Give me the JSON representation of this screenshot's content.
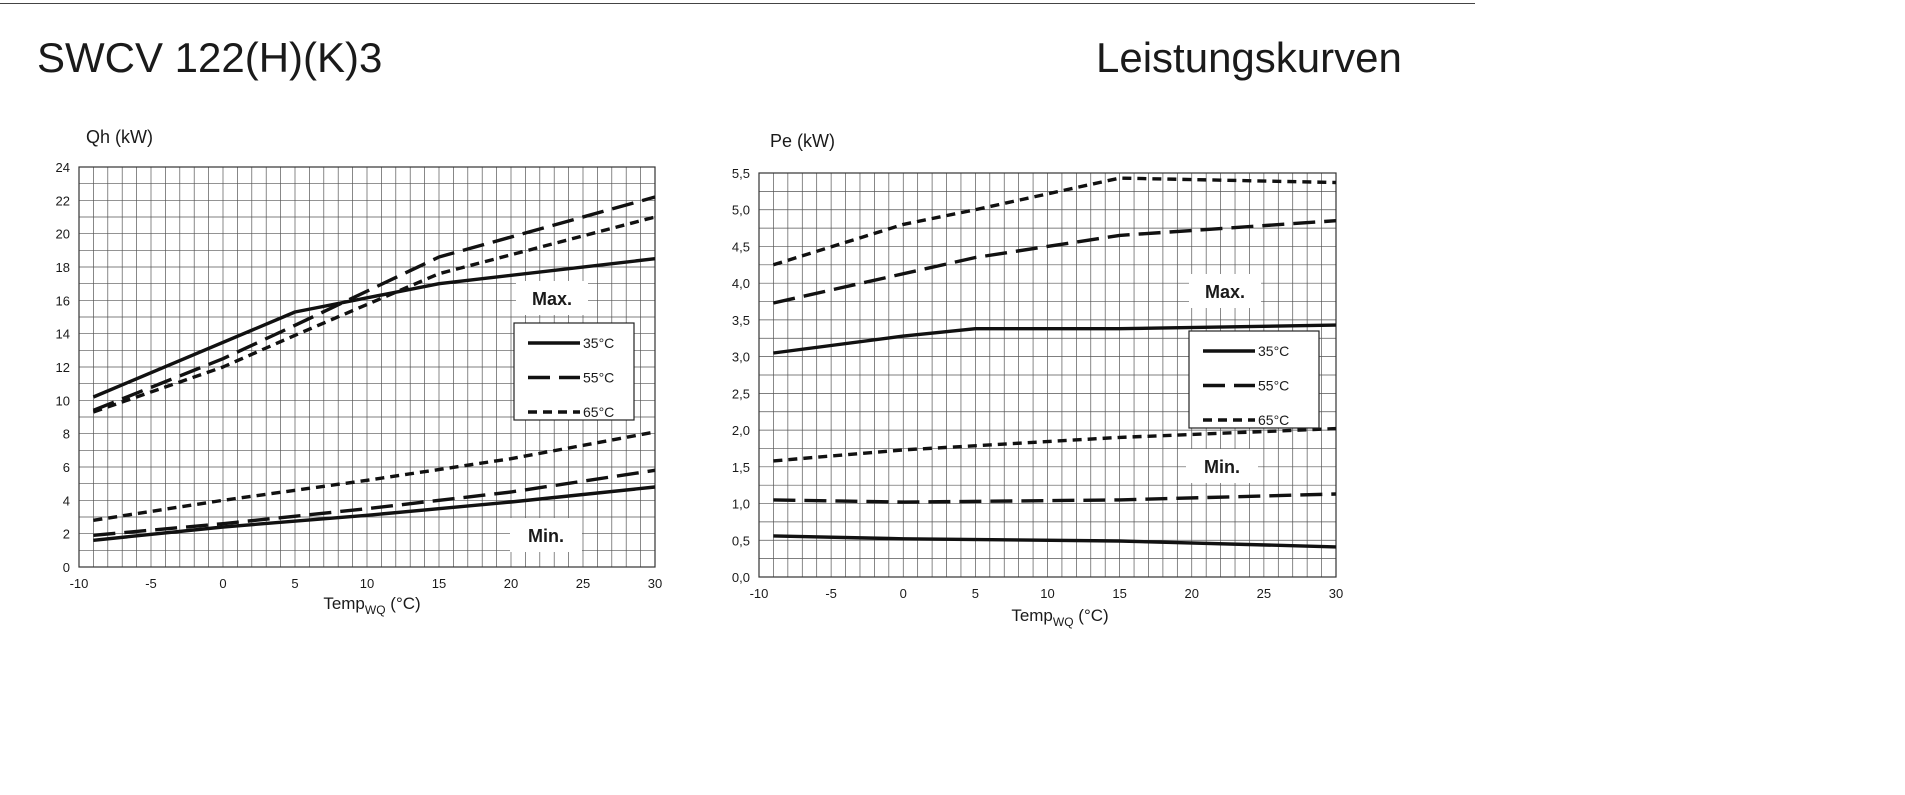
{
  "page": {
    "title": "SWCV 122(H)(K)3",
    "subtitle": "Leistungskurven"
  },
  "legend": {
    "items": [
      {
        "label": "35°C",
        "dash": "solid"
      },
      {
        "label": "55°C",
        "dash": "long-dash"
      },
      {
        "label": "65°C",
        "dash": "short-dash"
      }
    ]
  },
  "chart_data": [
    {
      "type": "line",
      "ylabel": "Qh (kW)",
      "xlabel_main": "Temp",
      "xlabel_sub": "WQ",
      "xlabel_unit": " (°C)",
      "xlim": [
        -10,
        30
      ],
      "ylim": [
        0,
        24
      ],
      "xticks": [
        -10,
        -5,
        0,
        5,
        10,
        15,
        20,
        25,
        30
      ],
      "xtick_labels": [
        "-10",
        "-5",
        "0",
        "5",
        "10",
        "15",
        "20",
        "25",
        "30"
      ],
      "yticks": [
        0,
        2,
        4,
        6,
        8,
        10,
        12,
        14,
        16,
        18,
        20,
        22,
        24
      ],
      "ytick_labels": [
        "0",
        "2",
        "4",
        "6",
        "8",
        "10",
        "12",
        "14",
        "16",
        "18",
        "20",
        "22",
        "24"
      ],
      "grid": true,
      "annotations": {
        "max": "Max.",
        "min": "Min."
      },
      "series": [
        {
          "label": "35°C",
          "group": "Max.",
          "dash": "solid",
          "x": [
            -9,
            5,
            15,
            30
          ],
          "y": [
            10.2,
            15.3,
            17.0,
            18.5
          ]
        },
        {
          "label": "55°C",
          "group": "Max.",
          "dash": "long-dash",
          "x": [
            -9,
            0,
            5,
            15,
            30
          ],
          "y": [
            9.4,
            12.5,
            14.5,
            18.6,
            22.2
          ]
        },
        {
          "label": "65°C",
          "group": "Max.",
          "dash": "short-dash",
          "x": [
            -9,
            0,
            5,
            15,
            30
          ],
          "y": [
            9.3,
            12.0,
            13.9,
            17.6,
            21.0
          ]
        },
        {
          "label": "35°C",
          "group": "Min.",
          "dash": "solid",
          "x": [
            -9,
            0,
            10,
            20,
            30
          ],
          "y": [
            1.6,
            2.4,
            3.1,
            3.9,
            4.8
          ]
        },
        {
          "label": "55°C",
          "group": "Min.",
          "dash": "long-dash",
          "x": [
            -9,
            0,
            10,
            20,
            30
          ],
          "y": [
            1.9,
            2.6,
            3.5,
            4.5,
            5.8
          ]
        },
        {
          "label": "65°C",
          "group": "Min.",
          "dash": "short-dash",
          "x": [
            -9,
            0,
            10,
            20,
            30
          ],
          "y": [
            2.8,
            4.0,
            5.2,
            6.5,
            8.1
          ]
        }
      ]
    },
    {
      "type": "line",
      "ylabel": "Pe (kW)",
      "xlabel_main": "Temp",
      "xlabel_sub": "WQ",
      "xlabel_unit": " (°C)",
      "xlim": [
        -10,
        30
      ],
      "ylim": [
        0,
        5.5
      ],
      "xticks": [
        -10,
        -5,
        0,
        5,
        10,
        15,
        20,
        25,
        30
      ],
      "xtick_labels": [
        "-10",
        "-5",
        "0",
        "5",
        "10",
        "15",
        "20",
        "25",
        "30"
      ],
      "yticks": [
        0,
        0.5,
        1.0,
        1.5,
        2.0,
        2.5,
        3.0,
        3.5,
        4.0,
        4.5,
        5.0,
        5.5
      ],
      "ytick_labels": [
        "0,0",
        "0,5",
        "1,0",
        "1,5",
        "2,0",
        "2,5",
        "3,0",
        "3,5",
        "4,0",
        "4,5",
        "5,0",
        "5,5"
      ],
      "grid": true,
      "annotations": {
        "max": "Max.",
        "min": "Min."
      },
      "series": [
        {
          "label": "35°C",
          "group": "Max.",
          "dash": "solid",
          "x": [
            -9,
            0,
            5,
            15,
            30
          ],
          "y": [
            3.05,
            3.28,
            3.38,
            3.38,
            3.43
          ]
        },
        {
          "label": "55°C",
          "group": "Max.",
          "dash": "long-dash",
          "x": [
            -9,
            5,
            15,
            30
          ],
          "y": [
            3.73,
            4.35,
            4.65,
            4.85
          ]
        },
        {
          "label": "65°C",
          "group": "Max.",
          "dash": "short-dash",
          "x": [
            -9,
            0,
            5,
            15,
            30
          ],
          "y": [
            4.25,
            4.8,
            5.0,
            5.43,
            5.37
          ]
        },
        {
          "label": "35°C",
          "group": "Min.",
          "dash": "solid",
          "x": [
            -9,
            0,
            15,
            30
          ],
          "y": [
            0.56,
            0.52,
            0.49,
            0.41
          ]
        },
        {
          "label": "55°C",
          "group": "Min.",
          "dash": "long-dash",
          "x": [
            -9,
            0,
            15,
            30
          ],
          "y": [
            1.05,
            1.02,
            1.05,
            1.13
          ]
        },
        {
          "label": "65°C",
          "group": "Min.",
          "dash": "short-dash",
          "x": [
            -9,
            0,
            15,
            30
          ],
          "y": [
            1.58,
            1.73,
            1.9,
            2.02
          ]
        }
      ]
    }
  ]
}
